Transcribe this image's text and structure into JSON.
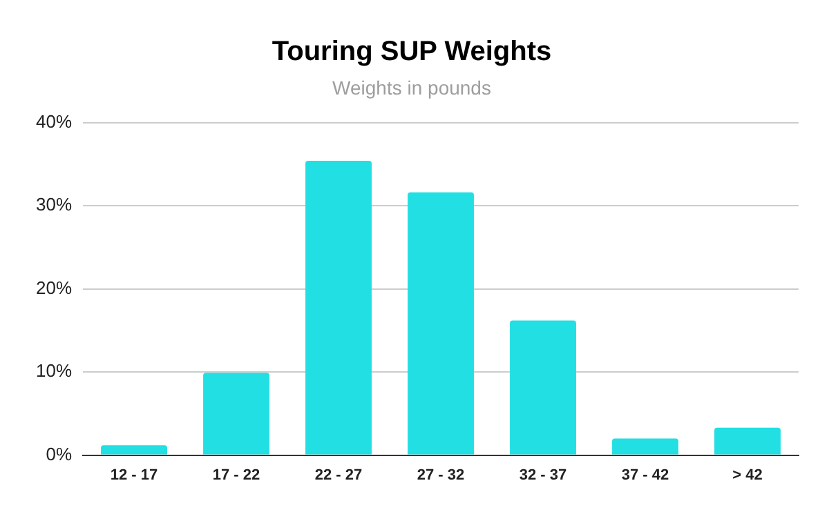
{
  "chart_data": {
    "type": "bar",
    "title": "Touring SUP Weights",
    "subtitle": "Weights in pounds",
    "categories": [
      "12 - 17",
      "17 - 22",
      "22 - 27",
      "27 - 32",
      "32 - 37",
      "37 - 42",
      "> 42"
    ],
    "values": [
      1.2,
      9.9,
      35.4,
      31.6,
      16.2,
      2.0,
      3.3
    ],
    "color": "#22dfe3",
    "ylim": [
      0,
      40
    ],
    "yticks": [
      {
        "value": 0,
        "label": "0%"
      },
      {
        "value": 10,
        "label": "10%"
      },
      {
        "value": 20,
        "label": "20%"
      },
      {
        "value": 30,
        "label": "30%"
      },
      {
        "value": 40,
        "label": "40%"
      }
    ],
    "grid": "y",
    "legend": false
  }
}
